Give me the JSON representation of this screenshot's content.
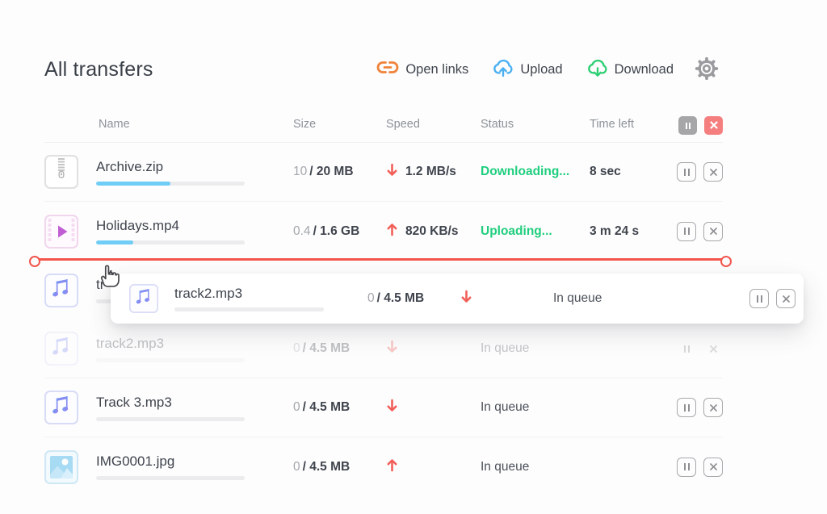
{
  "title": "All transfers",
  "toolbar": {
    "open_links": "Open links",
    "upload": "Upload",
    "download": "Download",
    "icons": {
      "open_links": "link-icon",
      "upload": "cloud-upload-icon",
      "download": "cloud-download-icon",
      "settings": "gear-icon"
    }
  },
  "table": {
    "columns": [
      "Name",
      "Size",
      "Speed",
      "Status",
      "Time left"
    ]
  },
  "rows": [
    {
      "name": "Archive.zip",
      "icon": "zip-file-icon",
      "progress_pct": 50,
      "size_done": "10",
      "size_rest": "/ 20 MB",
      "direction": "download",
      "speed": "1.2 MB/s",
      "status": "Downloading...",
      "time_left": "8 sec"
    },
    {
      "name": "Holidays.mp4",
      "icon": "video-file-icon",
      "progress_pct": 25,
      "size_done": "0.4",
      "size_rest": "/ 1.6 GB",
      "direction": "upload",
      "speed": "820 KB/s",
      "status": "Uploading...",
      "time_left": "3 m 24 s"
    },
    {
      "name": "track2.mp3",
      "icon": "music-file-icon",
      "progress_pct": 0,
      "size_done": "0",
      "size_rest": "/ 4.5 MB",
      "direction": "download",
      "status": "In queue",
      "faded": true
    },
    {
      "name": "Track 3.mp3",
      "icon": "music-file-icon",
      "progress_pct": 0,
      "size_done": "0",
      "size_rest": "/ 4.5 MB",
      "direction": "download",
      "status": "In queue"
    },
    {
      "name": "IMG0001.jpg",
      "icon": "image-file-icon",
      "progress_pct": 0,
      "size_done": "0",
      "size_rest": "/ 4.5 MB",
      "direction": "upload",
      "status": "In queue"
    }
  ],
  "drag": {
    "clipped_name": "tr",
    "clipped_progress_pct": 0,
    "card": {
      "name": "track2.mp3",
      "progress_pct": 0,
      "size_done": "0",
      "size_rest": "/ 4.5 MB",
      "direction": "download",
      "status": "In queue"
    }
  },
  "colors": {
    "progress_blue": "#6fcdf6",
    "status_green": "#20ce7e",
    "transfer_red": "#f2605a",
    "drop_line_red": "#f2564d",
    "link_orange": "#f0823a",
    "upload_blue": "#4bb0f2",
    "download_green": "#2fcf74",
    "pause_all_bg": "#a6a6a9",
    "cancel_all_bg": "#f57f7f"
  }
}
